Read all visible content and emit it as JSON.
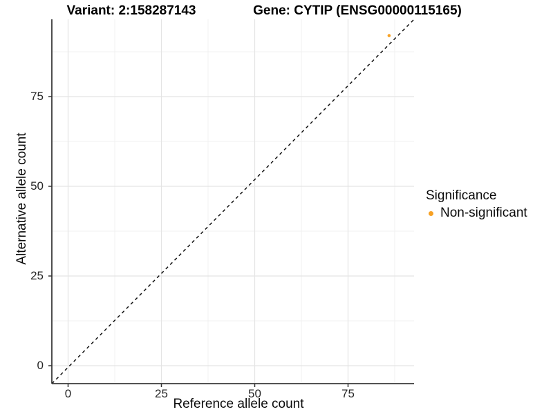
{
  "titles": {
    "left": "Variant: 2:158287143",
    "right": "Gene: CYTIP (ENSG00000115165)"
  },
  "axes": {
    "x_label": "Reference allele count",
    "y_label": "Alternative allele count"
  },
  "legend": {
    "title": "Significance",
    "entries": [
      {
        "label": "Non-significant",
        "color": "#F7A124",
        "marker": "circle-icon"
      }
    ]
  },
  "colors": {
    "point_orange": "#F7A124",
    "grid_major": "#E4E4E4",
    "grid_minor": "#F0F0F0",
    "axis_line": "#3a3a3a",
    "tick_mark": "#333333",
    "reference_line": "#111111",
    "background": "#FFFFFF"
  },
  "chart_data": {
    "type": "scatter",
    "title": "Variant: 2:158287143 — Gene: CYTIP (ENSG00000115165)",
    "xlabel": "Reference allele count",
    "ylabel": "Alternative allele count",
    "x_ticks": [
      0,
      25,
      50,
      75
    ],
    "y_ticks": [
      0,
      25,
      50,
      75
    ],
    "tick_step": 25,
    "xlim": [
      -4.5,
      93
    ],
    "ylim": [
      -5,
      96
    ],
    "grid": true,
    "legend_position": "right",
    "series": [
      {
        "name": "Non-significant",
        "color": "#F7A124",
        "points": [
          {
            "x": 86,
            "y": 92
          }
        ]
      }
    ],
    "reference_line": {
      "type": "identity",
      "slope": 1,
      "intercept": 0,
      "style": "dashed"
    }
  }
}
